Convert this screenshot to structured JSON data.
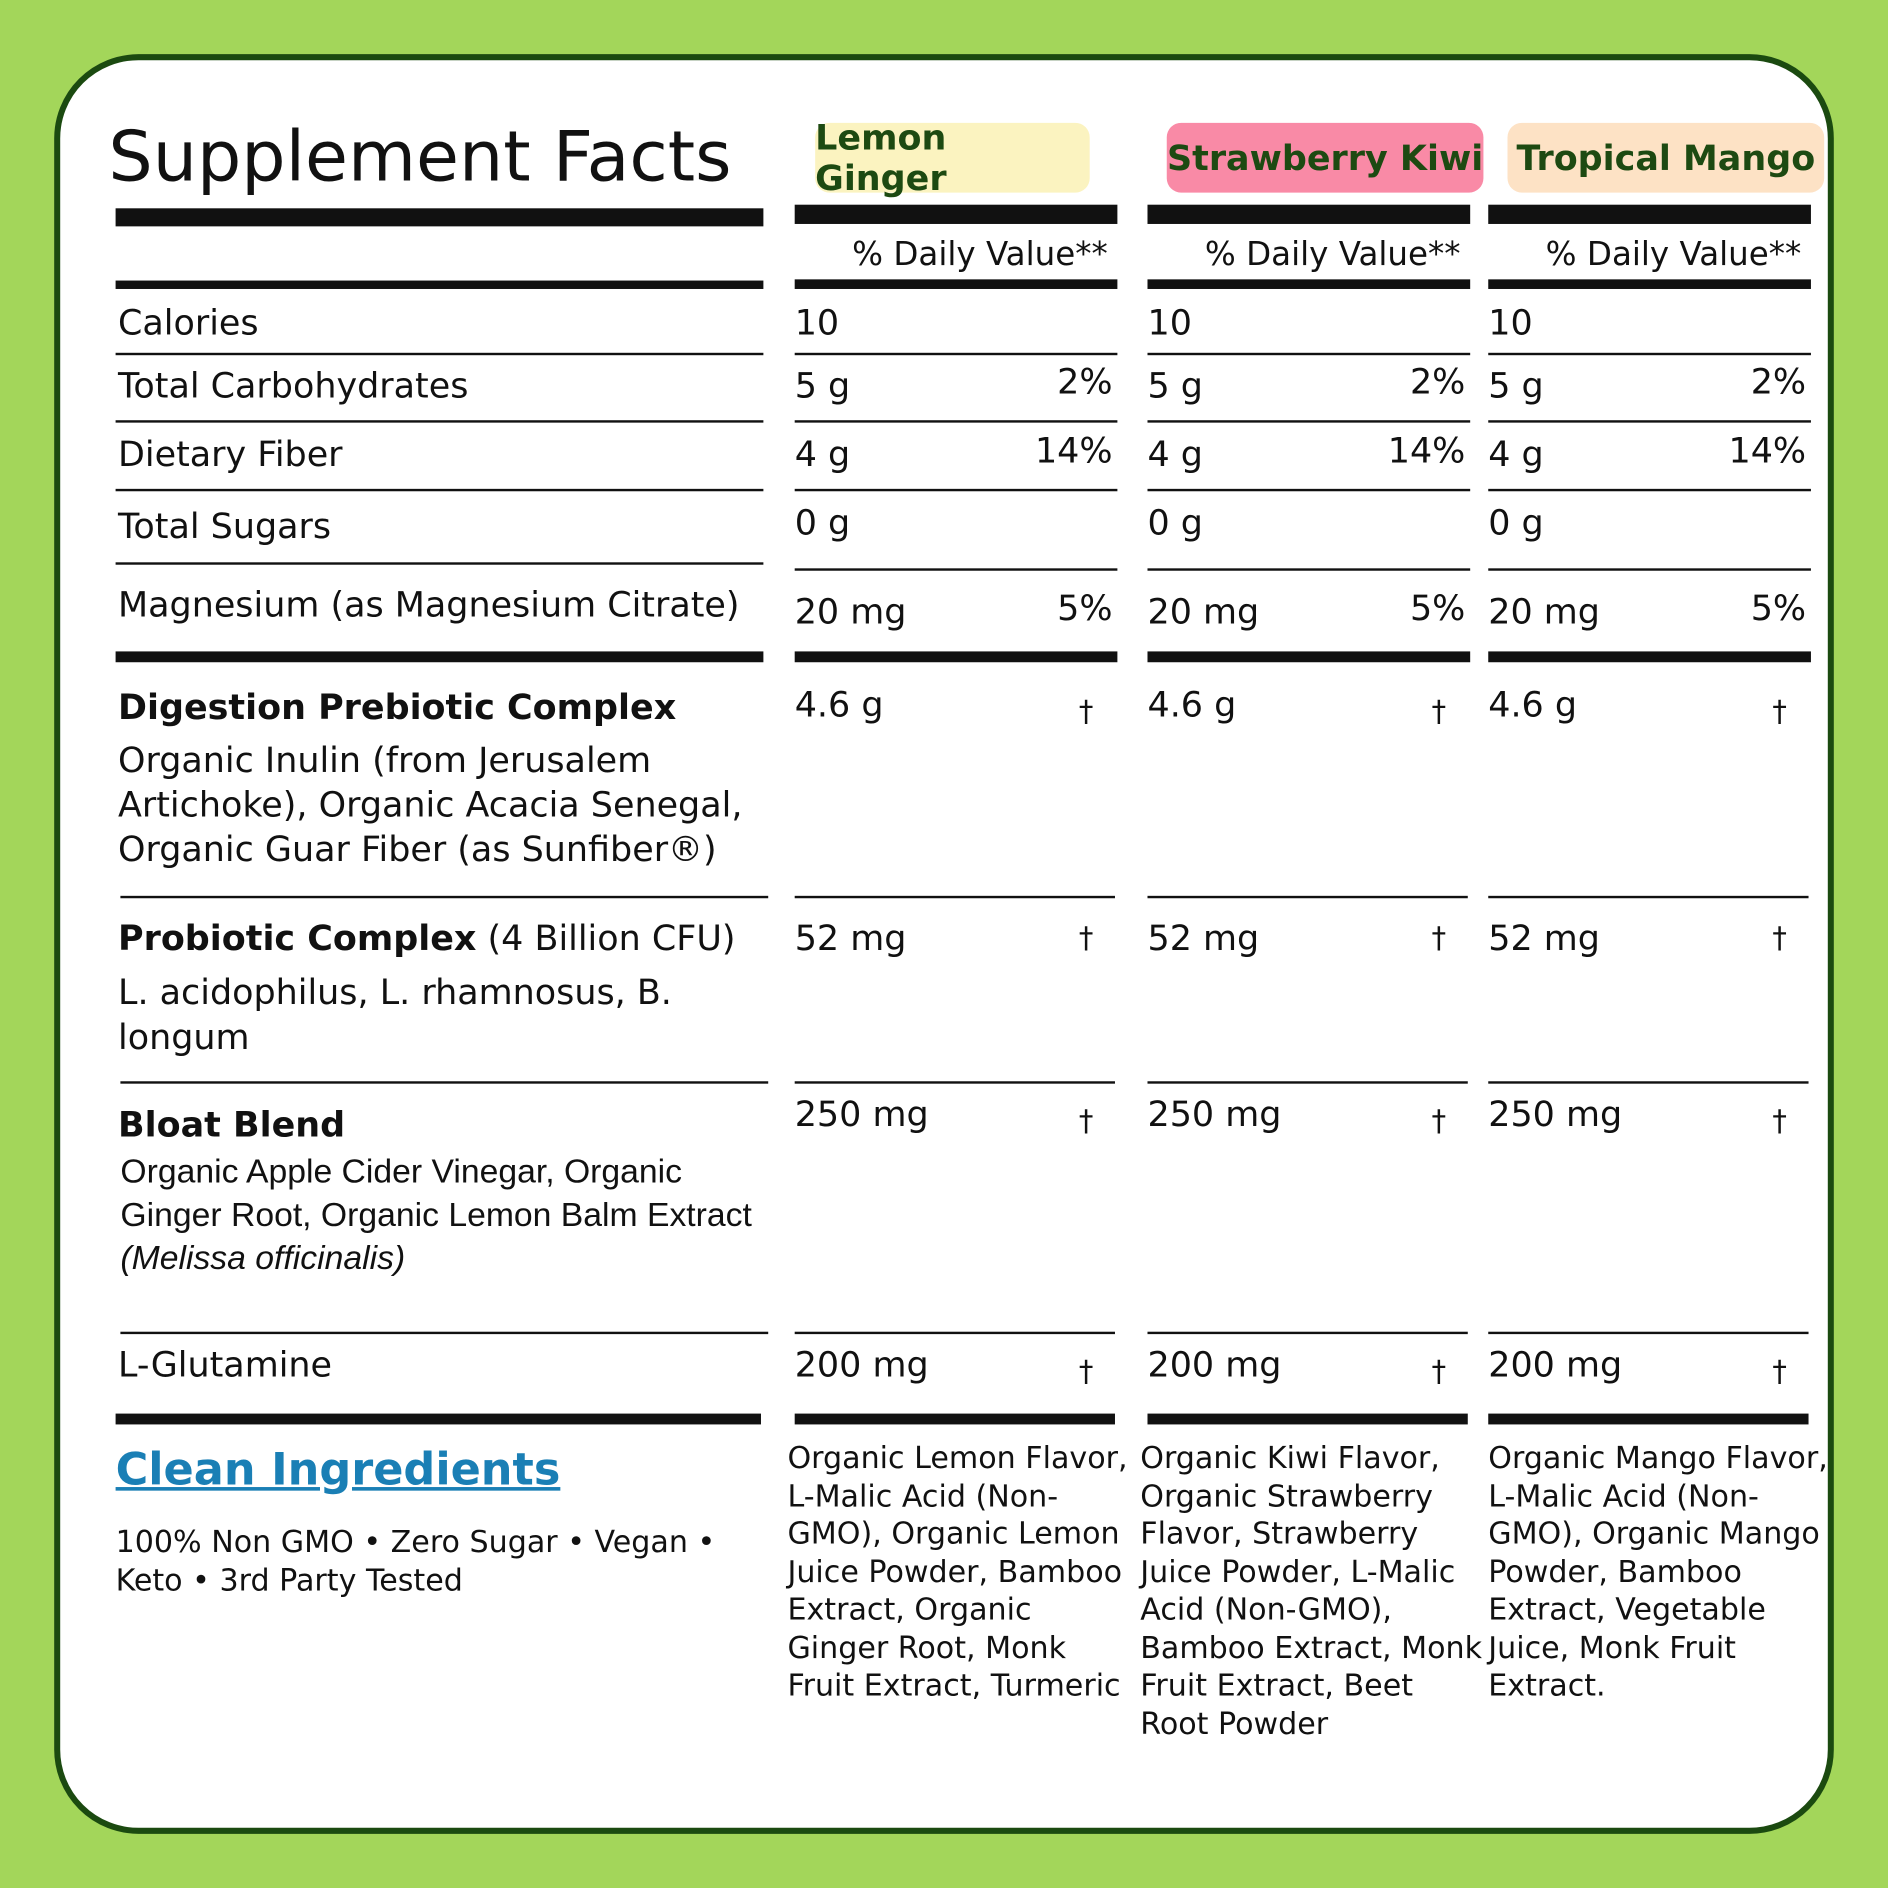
{
  "title": "Supplement Facts",
  "rows": [
    {
      "name": "Calories"
    },
    {
      "name": "Total Carbohydrates"
    },
    {
      "name": "Dietary Fiber"
    },
    {
      "name": "Total Sugars"
    },
    {
      "name": "Magnesium (as Magnesium Citrate)"
    },
    {
      "name": "Digestion Prebiotic Complex",
      "description": "Organic Inulin (from Jerusalem Artichoke), Organic Acacia Senegal, Organic Guar Fiber (as Sunfiber®)"
    },
    {
      "name": "Probiotic Complex",
      "suffix": "(4 Billion CFU)",
      "description": "L. acidophilus, L. rhamnosus, B. longum"
    },
    {
      "name": "Bloat Blend",
      "description": "Organic Apple Cider Vinegar, Organic Ginger Root, Organic Lemon Balm Extract",
      "botanical": "(Melissa officinalis)"
    },
    {
      "name": "L-Glutamine"
    }
  ],
  "flavors": [
    {
      "name": "Lemon Ginger",
      "color": "#fbf3c0",
      "dv_header": "% Daily Value**",
      "amounts": [
        {
          "amount": "10"
        },
        {
          "amount": "5 g",
          "dv": "2%"
        },
        {
          "amount": "4 g",
          "dv": "14%"
        },
        {
          "amount": "0 g"
        },
        {
          "amount": "20 mg",
          "dv": "5%"
        },
        {
          "amount": "4.6 g",
          "dv": "†"
        },
        {
          "amount": "52 mg",
          "dv": "†"
        },
        {
          "amount": "250 mg",
          "dv": "†"
        },
        {
          "amount": "200 mg",
          "dv": "†"
        }
      ],
      "other_ingredients": "Organic Lemon Flavor, L-Malic Acid (Non-GMO), Organic Lemon Juice Powder, Bamboo Extract, Organic Ginger Root, Monk Fruit Extract, Turmeric"
    },
    {
      "name": "Strawberry Kiwi",
      "color": "#f98aa6",
      "dv_header": "% Daily Value**",
      "amounts": [
        {
          "amount": "10"
        },
        {
          "amount": "5 g",
          "dv": "2%"
        },
        {
          "amount": "4 g",
          "dv": "14%"
        },
        {
          "amount": "0 g"
        },
        {
          "amount": "20 mg",
          "dv": "5%"
        },
        {
          "amount": "4.6 g",
          "dv": "†"
        },
        {
          "amount": "52 mg",
          "dv": "†"
        },
        {
          "amount": "250 mg",
          "dv": "†"
        },
        {
          "amount": "200 mg",
          "dv": "†"
        }
      ],
      "other_ingredients": "Organic Kiwi Flavor, Organic Strawberry Flavor, Strawberry Juice Powder, L-Malic Acid (Non-GMO), Bamboo Extract, Monk Fruit Extract, Beet Root Powder"
    },
    {
      "name": "Tropical Mango",
      "color": "#fde2c5",
      "dv_header": "% Daily Value**",
      "amounts": [
        {
          "amount": "10"
        },
        {
          "amount": "5 g",
          "dv": "2%"
        },
        {
          "amount": "4 g",
          "dv": "14%"
        },
        {
          "amount": "0 g"
        },
        {
          "amount": "20 mg",
          "dv": "5%"
        },
        {
          "amount": "4.6 g",
          "dv": "†"
        },
        {
          "amount": "52 mg",
          "dv": "†"
        },
        {
          "amount": "250 mg",
          "dv": "†"
        },
        {
          "amount": "200 mg",
          "dv": "†"
        }
      ],
      "other_ingredients": "Organic Mango Flavor, L-Malic Acid (Non-GMO), Organic Mango Powder, Bamboo Extract, Vegetable Juice, Monk Fruit Extract."
    }
  ],
  "footer": {
    "heading": "Clean Ingredients",
    "tagline": "100% Non GMO • Zero Sugar • Vegan • Keto • 3rd Party Tested"
  }
}
